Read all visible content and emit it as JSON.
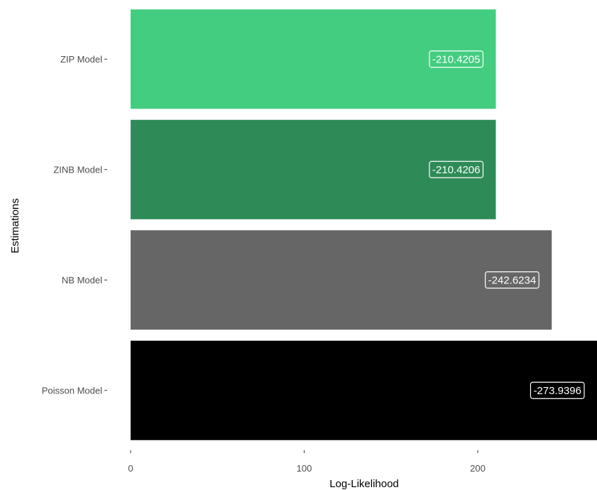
{
  "chart_data": {
    "type": "bar",
    "orientation": "horizontal",
    "categories": [
      "Poisson Model",
      "NB Model",
      "ZINB Model",
      "ZIP Model"
    ],
    "values": [
      273.9396,
      242.6234,
      210.4206,
      210.4205
    ],
    "value_labels": [
      "-273.9396",
      "-242.6234",
      "-210.4206",
      "-210.4205"
    ],
    "colors": [
      "#000000",
      "#666666",
      "#2e8b57",
      "#43cd80"
    ],
    "xlabel": "Log-Likelihood",
    "ylabel": "Estimations",
    "xlim": [
      0,
      270
    ],
    "x_ticks": [
      0,
      100,
      200
    ],
    "x_tick_labels": [
      "0",
      "100",
      "200"
    ],
    "grid": false,
    "legend": "none"
  }
}
